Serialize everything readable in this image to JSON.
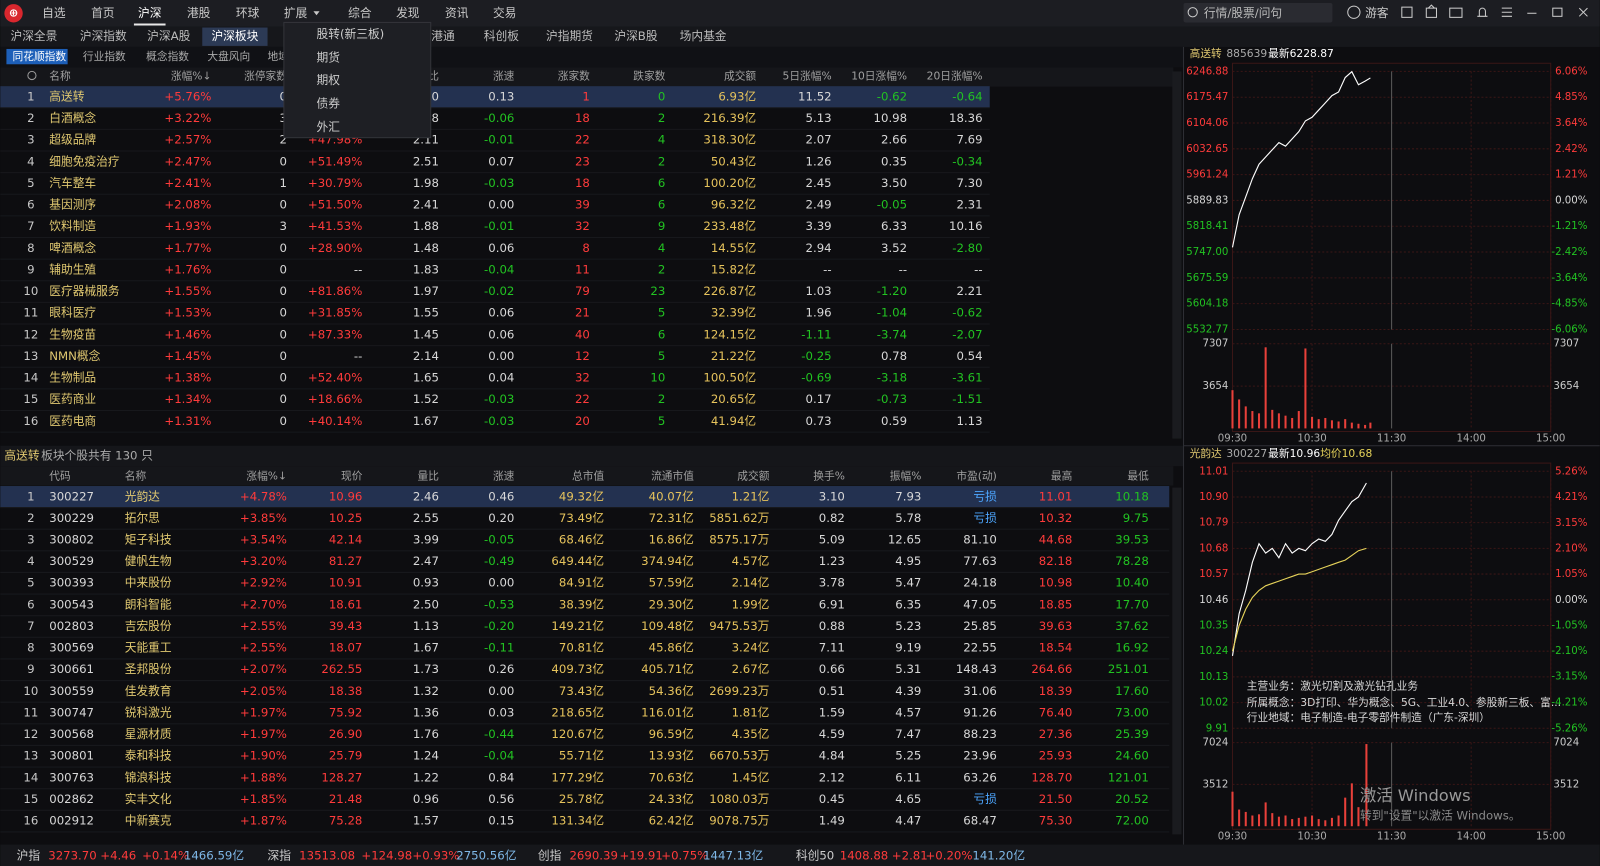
{
  "menu": {
    "items": [
      "自选",
      "首页",
      "沪深",
      "港股",
      "环球",
      "扩展",
      "综合",
      "发现",
      "资讯",
      "交易"
    ],
    "search": "行情/股票/问句",
    "user": "游客"
  },
  "tabs": [
    "沪深全景",
    "沪深指数",
    "沪深A股",
    "沪深板块",
    "沪港通",
    "科创板",
    "沪指期货",
    "沪深B股",
    "场内基金"
  ],
  "subtabs": [
    "同花顺指数",
    "行业指数",
    "概念指数",
    "大盘风向",
    "地域"
  ],
  "dropdown": [
    "股转(新三板)",
    "期货",
    "期权",
    "债券",
    "外汇"
  ],
  "board_table": {
    "headers": [
      null,
      "名称",
      "涨幅%↓",
      "涨停家数",
      null,
      "量比",
      "涨速",
      "涨家数",
      "跌家数",
      "成交额",
      "5日涨幅%",
      "10日涨幅%",
      "20日涨幅%"
    ],
    "rows": [
      [
        "1",
        "高送转",
        "+5.76%",
        "0",
        null,
        "0",
        "0.13",
        "1",
        "0",
        "6.93亿",
        "11.52",
        "-0.62",
        "-0.64"
      ],
      [
        "2",
        "白酒概念",
        "+3.22%",
        "3",
        null,
        "8",
        "-0.06",
        "18",
        "2",
        "216.39亿",
        "5.13",
        "10.98",
        "18.36"
      ],
      [
        "3",
        "超级品牌",
        "+2.57%",
        "2",
        "+47.98%",
        "2.11",
        "-0.01",
        "22",
        "4",
        "318.30亿",
        "2.07",
        "2.66",
        "7.69"
      ],
      [
        "4",
        "细胞免疫治疗",
        "+2.47%",
        "0",
        "+51.49%",
        "2.51",
        "0.07",
        "23",
        "2",
        "50.43亿",
        "1.26",
        "0.35",
        "-0.34"
      ],
      [
        "5",
        "汽车整车",
        "+2.41%",
        "1",
        "+30.79%",
        "1.98",
        "-0.03",
        "18",
        "6",
        "100.20亿",
        "2.45",
        "3.50",
        "7.30"
      ],
      [
        "6",
        "基因测序",
        "+2.08%",
        "0",
        "+51.50%",
        "2.41",
        "0.00",
        "39",
        "6",
        "96.32亿",
        "2.49",
        "-0.05",
        "2.31"
      ],
      [
        "7",
        "饮料制造",
        "+1.93%",
        "3",
        "+41.53%",
        "1.88",
        "-0.01",
        "32",
        "9",
        "233.48亿",
        "3.39",
        "6.33",
        "10.16"
      ],
      [
        "8",
        "啤酒概念",
        "+1.77%",
        "0",
        "+28.90%",
        "1.48",
        "0.06",
        "8",
        "4",
        "14.55亿",
        "2.94",
        "3.52",
        "-2.80"
      ],
      [
        "9",
        "辅助生殖",
        "+1.76%",
        "0",
        "--",
        "1.83",
        "-0.04",
        "11",
        "2",
        "15.82亿",
        "--",
        "--",
        "--"
      ],
      [
        "10",
        "医疗器械服务",
        "+1.55%",
        "0",
        "+81.86%",
        "1.97",
        "-0.02",
        "79",
        "23",
        "226.87亿",
        "1.03",
        "-1.20",
        "2.21"
      ],
      [
        "11",
        "眼科医疗",
        "+1.53%",
        "0",
        "+31.85%",
        "1.55",
        "0.06",
        "21",
        "5",
        "32.39亿",
        "1.96",
        "-1.04",
        "-0.62"
      ],
      [
        "12",
        "生物疫苗",
        "+1.46%",
        "0",
        "+87.33%",
        "1.45",
        "0.06",
        "40",
        "6",
        "124.15亿",
        "-1.11",
        "-3.74",
        "-2.07"
      ],
      [
        "13",
        "NMN概念",
        "+1.45%",
        "0",
        "--",
        "2.14",
        "0.00",
        "12",
        "5",
        "21.22亿",
        "-0.25",
        "0.78",
        "0.54"
      ],
      [
        "14",
        "生物制品",
        "+1.38%",
        "0",
        "+52.40%",
        "1.65",
        "0.04",
        "32",
        "10",
        "100.50亿",
        "-0.69",
        "-3.18",
        "-3.61"
      ],
      [
        "15",
        "医药商业",
        "+1.34%",
        "0",
        "+18.66%",
        "1.52",
        "-0.03",
        "22",
        "2",
        "20.65亿",
        "0.17",
        "-0.73",
        "-1.51"
      ],
      [
        "16",
        "医药电商",
        "+1.31%",
        "0",
        "+40.14%",
        "1.67",
        "-0.03",
        "20",
        "5",
        "41.94亿",
        "0.73",
        "0.59",
        "1.13"
      ]
    ]
  },
  "stock_table": {
    "board": "高送转",
    "caption": "板块个股共有 130 只",
    "headers": [
      null,
      "代码",
      "名称",
      "涨幅%↓",
      "现价",
      "量比",
      "涨速",
      "总市值",
      "流通市值",
      "成交额",
      "换手%",
      "振幅%",
      "市盈(动)",
      "最高",
      "最低"
    ],
    "rows": [
      [
        "1",
        "300227",
        "光韵达",
        "+4.78%",
        "10.96",
        "2.46",
        "0.46",
        "49.32亿",
        "40.07亿",
        "1.21亿",
        "3.10",
        "7.93",
        "亏损",
        "11.01",
        "10.18"
      ],
      [
        "2",
        "300229",
        "拓尔思",
        "+3.85%",
        "10.25",
        "2.55",
        "0.20",
        "73.49亿",
        "72.31亿",
        "5851.62万",
        "0.82",
        "5.78",
        "亏损",
        "10.32",
        "9.75"
      ],
      [
        "3",
        "300802",
        "矩子科技",
        "+3.54%",
        "42.14",
        "3.99",
        "-0.05",
        "68.46亿",
        "16.86亿",
        "8575.17万",
        "5.09",
        "12.65",
        "81.10",
        "44.68",
        "39.53"
      ],
      [
        "4",
        "300529",
        "健帆生物",
        "+3.20%",
        "81.27",
        "2.47",
        "-0.49",
        "649.44亿",
        "374.94亿",
        "4.57亿",
        "1.23",
        "4.95",
        "77.63",
        "82.18",
        "78.28"
      ],
      [
        "5",
        "300393",
        "中来股份",
        "+2.92%",
        "10.91",
        "0.93",
        "0.00",
        "84.91亿",
        "57.59亿",
        "2.14亿",
        "3.78",
        "5.47",
        "24.18",
        "10.98",
        "10.40"
      ],
      [
        "6",
        "300543",
        "朗科智能",
        "+2.70%",
        "18.61",
        "2.50",
        "-0.53",
        "38.39亿",
        "29.30亿",
        "1.99亿",
        "6.91",
        "6.35",
        "47.05",
        "18.85",
        "17.70"
      ],
      [
        "7",
        "002803",
        "吉宏股份",
        "+2.55%",
        "39.43",
        "1.13",
        "-0.20",
        "149.21亿",
        "109.48亿",
        "9475.53万",
        "0.88",
        "5.23",
        "25.85",
        "39.63",
        "37.62"
      ],
      [
        "8",
        "300569",
        "天能重工",
        "+2.55%",
        "18.07",
        "1.67",
        "-0.11",
        "70.81亿",
        "45.86亿",
        "3.24亿",
        "7.11",
        "9.19",
        "22.55",
        "18.54",
        "16.92"
      ],
      [
        "9",
        "300661",
        "圣邦股份",
        "+2.07%",
        "262.55",
        "1.73",
        "0.26",
        "409.73亿",
        "405.71亿",
        "2.67亿",
        "0.66",
        "5.31",
        "148.43",
        "264.66",
        "251.01"
      ],
      [
        "10",
        "300559",
        "佳发教育",
        "+2.05%",
        "18.38",
        "1.32",
        "0.00",
        "73.43亿",
        "54.36亿",
        "2699.23万",
        "0.51",
        "4.39",
        "31.06",
        "18.39",
        "17.60"
      ],
      [
        "11",
        "300747",
        "锐科激光",
        "+1.97%",
        "75.92",
        "1.36",
        "0.03",
        "218.65亿",
        "116.01亿",
        "1.81亿",
        "1.59",
        "4.57",
        "91.26",
        "76.40",
        "73.00"
      ],
      [
        "12",
        "300568",
        "星源材质",
        "+1.97%",
        "26.90",
        "1.76",
        "-0.44",
        "120.67亿",
        "96.59亿",
        "4.35亿",
        "4.59",
        "7.47",
        "88.23",
        "27.36",
        "25.39"
      ],
      [
        "13",
        "300801",
        "泰和科技",
        "+1.90%",
        "25.79",
        "1.24",
        "-0.04",
        "55.71亿",
        "13.93亿",
        "6670.53万",
        "4.84",
        "5.25",
        "23.96",
        "25.93",
        "24.60"
      ],
      [
        "14",
        "300763",
        "锦浪科技",
        "+1.88%",
        "128.27",
        "1.22",
        "0.84",
        "177.29亿",
        "70.63亿",
        "1.45亿",
        "2.12",
        "6.11",
        "63.26",
        "128.70",
        "121.01"
      ],
      [
        "15",
        "002862",
        "实丰文化",
        "+1.85%",
        "21.48",
        "0.96",
        "0.56",
        "25.78亿",
        "24.33亿",
        "1080.03万",
        "0.45",
        "4.65",
        "亏损",
        "21.50",
        "20.52"
      ],
      [
        "16",
        "002912",
        "中新赛克",
        "+1.87%",
        "75.28",
        "1.57",
        "0.15",
        "131.34亿",
        "62.42亿",
        "9078.75万",
        "1.49",
        "4.47",
        "68.47",
        "75.30",
        "72.00"
      ]
    ]
  },
  "status": [
    {
      "name": "沪指",
      "price": "3273.70",
      "change": "+4.46",
      "pct": "+0.14%",
      "amount": "1466.59亿"
    },
    {
      "name": "深指",
      "price": "13513.08",
      "change": "+124.98",
      "pct": "+0.93%",
      "amount": "2750.56亿"
    },
    {
      "name": "创指",
      "price": "2690.39",
      "change": "+19.91",
      "pct": "+0.75%",
      "amount": "1447.13亿"
    },
    {
      "name": "科创50",
      "price": "1408.88",
      "change": "+2.81",
      "pct": "+0.20%",
      "amount": "141.20亿"
    }
  ],
  "chart_data": [
    {
      "type": "line",
      "name": "高送转",
      "code": "885639",
      "latest": "最新6228.87",
      "x": [
        0,
        5,
        10,
        15,
        20,
        25,
        30,
        35,
        40,
        45,
        50,
        55,
        60,
        65,
        70,
        75,
        80,
        85,
        90,
        95,
        100,
        104
      ],
      "series": [
        {
          "color": "#ffffff",
          "values": [
            5760,
            5850,
            5900,
            5950,
            5990,
            6010,
            6030,
            6050,
            6040,
            6060,
            6080,
            6110,
            6120,
            6140,
            6160,
            6180,
            6190,
            6230,
            6246,
            6210,
            6220,
            6228.87
          ]
        }
      ],
      "xlim": [
        0,
        240
      ],
      "ylim": [
        5532.77,
        6246.88
      ],
      "yticks": [
        6246.88,
        6175.47,
        6104.06,
        6032.65,
        5961.24,
        5889.83,
        5818.41,
        {
          "value": 5747,
          "label": "5747.00"
        },
        5675.59,
        5604.18,
        5532.77
      ],
      "y2lim": [
        -6.06,
        6.06
      ],
      "y2ticks": [
        {
          "value": 6.06,
          "label": "6.06%"
        },
        {
          "value": 4.85,
          "label": "4.85%"
        },
        {
          "value": 3.64,
          "label": "3.64%"
        },
        {
          "value": 2.42,
          "label": "2.42%"
        },
        {
          "value": 1.21,
          "label": "1.21%"
        },
        {
          "value": 0,
          "label": "0.00%"
        },
        {
          "value": -1.21,
          "label": "-1.21%"
        },
        {
          "value": -2.42,
          "label": "-2.42%"
        },
        {
          "value": -3.64,
          "label": "-3.64%"
        },
        {
          "value": -4.85,
          "label": "-4.85%"
        },
        {
          "value": -6.06,
          "label": "-6.06%"
        }
      ]
    },
    {
      "type": "bar",
      "x": [
        0,
        5,
        10,
        15,
        20,
        25,
        30,
        35,
        40,
        45,
        50,
        55,
        60,
        65,
        70,
        75,
        80,
        85,
        90,
        95,
        100,
        104
      ],
      "series": [
        {
          "color": "#e8403a",
          "values": [
            3300,
            2500,
            1900,
            1500,
            1300,
            7000,
            1600,
            1300,
            1100,
            900,
            1500,
            6900,
            1000,
            800,
            900,
            700,
            600,
            800,
            500,
            400,
            300,
            500
          ]
        }
      ],
      "xlim": [
        0,
        240
      ],
      "ylim": [
        0,
        7307
      ],
      "yticks": [
        7307,
        3654
      ],
      "xticks": [
        {
          "value": 0,
          "label": "09:30"
        },
        {
          "value": 60,
          "label": "10:30"
        },
        {
          "value": 120,
          "label": "11:30"
        },
        {
          "value": 180,
          "label": "14:00"
        },
        {
          "value": 240,
          "label": "15:00"
        }
      ]
    },
    {
      "type": "line",
      "name": "光韵达",
      "code": "300227",
      "latest": "最新10.96",
      "average": "均价10.68",
      "x": [
        0,
        5,
        10,
        15,
        20,
        25,
        30,
        35,
        40,
        45,
        50,
        55,
        60,
        65,
        70,
        75,
        80,
        85,
        90,
        95,
        101
      ],
      "series": [
        {
          "color": "#ffffff",
          "values": [
            10.22,
            10.4,
            10.5,
            10.62,
            10.7,
            10.66,
            10.68,
            10.64,
            10.7,
            10.66,
            10.68,
            10.67,
            10.7,
            10.72,
            10.71,
            10.74,
            10.8,
            10.84,
            10.88,
            10.9,
            10.96
          ]
        },
        {
          "color": "#e6d35a",
          "values": [
            10.24,
            10.35,
            10.42,
            10.47,
            10.5,
            10.52,
            10.53,
            10.54,
            10.55,
            10.56,
            10.57,
            10.57,
            10.58,
            10.59,
            10.6,
            10.61,
            10.62,
            10.63,
            10.65,
            10.67,
            10.68
          ]
        }
      ],
      "xlim": [
        0,
        240
      ],
      "ylim": [
        9.91,
        11.01
      ],
      "yticks": [
        11.01,
        {
          "value": 10.9,
          "label": "10.90"
        },
        10.79,
        10.68,
        10.57,
        10.46,
        10.35,
        10.24,
        10.13,
        10.02,
        9.91
      ],
      "y2lim": [
        -5.26,
        5.26
      ],
      "y2ticks": [
        {
          "value": 5.26,
          "label": "5.26%"
        },
        {
          "value": 4.21,
          "label": "4.21%"
        },
        {
          "value": 3.15,
          "label": "3.15%"
        },
        {
          "value": 2.1,
          "label": "2.10%"
        },
        {
          "value": 1.05,
          "label": "1.05%"
        },
        {
          "value": 0,
          "label": "0.00%"
        },
        {
          "value": -1.05,
          "label": "-1.05%"
        },
        {
          "value": -2.1,
          "label": "-2.10%"
        },
        {
          "value": -3.15,
          "label": "-3.15%"
        },
        {
          "value": -4.21,
          "label": "-4.21%"
        },
        {
          "value": -5.26,
          "label": "-5.26%"
        }
      ]
    },
    {
      "type": "bar",
      "x": [
        0,
        5,
        10,
        15,
        20,
        25,
        30,
        35,
        40,
        45,
        50,
        55,
        60,
        65,
        70,
        75,
        80,
        85,
        90,
        95,
        101
      ],
      "series": [
        {
          "color": "#e8403a",
          "values": [
            2900,
            1400,
            1200,
            900,
            1000,
            2000,
            1100,
            800,
            900,
            600,
            700,
            800,
            900,
            600,
            500,
            700,
            900,
            2400,
            3600,
            1600,
            6900
          ]
        }
      ],
      "xlim": [
        0,
        240
      ],
      "ylim": [
        0,
        7024
      ],
      "yticks": [
        7024,
        3512
      ],
      "xticks": [
        {
          "value": 0,
          "label": "09:30"
        },
        {
          "value": 60,
          "label": "10:30"
        },
        {
          "value": 120,
          "label": "11:30"
        },
        {
          "value": 180,
          "label": "14:00"
        },
        {
          "value": 240,
          "label": "15:00"
        }
      ]
    }
  ],
  "stock_info": [
    "主营业务：激光切割及激光钻孔业务",
    "所属概念：3D打印、华为概念、5G、工业4.0、参股新三板、富...",
    "行业地域：电子制造-电子零部件制造（广东-深圳）"
  ],
  "watermark": [
    "激活 Windows",
    "转到\"设置\"以激活 Windows。"
  ]
}
